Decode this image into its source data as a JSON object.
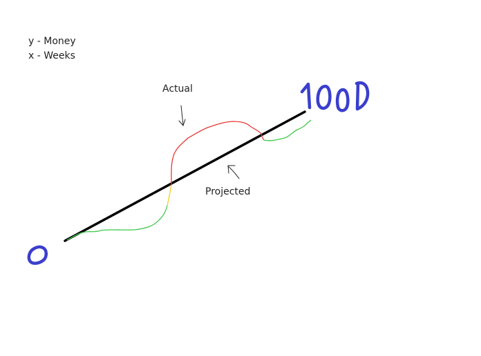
{
  "legend": {
    "y_line": "y - Money",
    "x_line": "x - Weeks"
  },
  "labels": {
    "actual": "Actual",
    "projected": "Projected",
    "start_value": "0",
    "end_value": "1000"
  },
  "colors": {
    "projected_line": "#000000",
    "actual_above": "#e53935",
    "actual_below": "#3cc84a",
    "actual_crossing": "#f0d020",
    "handwritten_numbers": "#3a3fcc",
    "arrows": "#222222"
  }
}
